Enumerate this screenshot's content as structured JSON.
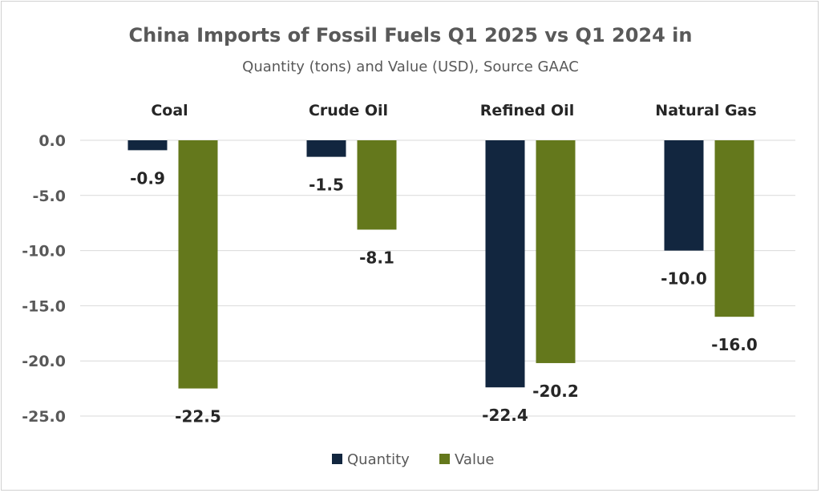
{
  "chart_data": {
    "type": "bar",
    "title": "China Imports of Fossil Fuels  Q1 2025  vs Q1 2024 in",
    "subtitle": "Quantity (tons) and Value (USD), Source GAAC",
    "categories": [
      "Coal",
      "Crude Oil",
      "Refined Oil",
      "Natural Gas"
    ],
    "series": [
      {
        "name": "Quantity",
        "color": "#12263f",
        "values": [
          -0.9,
          -1.5,
          -22.4,
          -10.0
        ]
      },
      {
        "name": "Value",
        "color": "#64781c",
        "values": [
          -22.5,
          -8.1,
          -20.2,
          -16.0
        ]
      }
    ],
    "ylim": [
      -25,
      0
    ],
    "yticks": [
      0,
      -5,
      -10,
      -15,
      -20,
      -25
    ],
    "ytick_labels": [
      "0.0",
      "-5.0",
      "-10.0",
      "-15.0",
      "-20.0",
      "-25.0"
    ],
    "data_labels": [
      [
        "-0.9",
        "-1.5",
        "-22.4",
        "-10.0"
      ],
      [
        "-22.5",
        "-8.1",
        "-20.2",
        "-16.0"
      ]
    ],
    "category_labels_position": "top",
    "grid": true,
    "legend": "bottom"
  }
}
